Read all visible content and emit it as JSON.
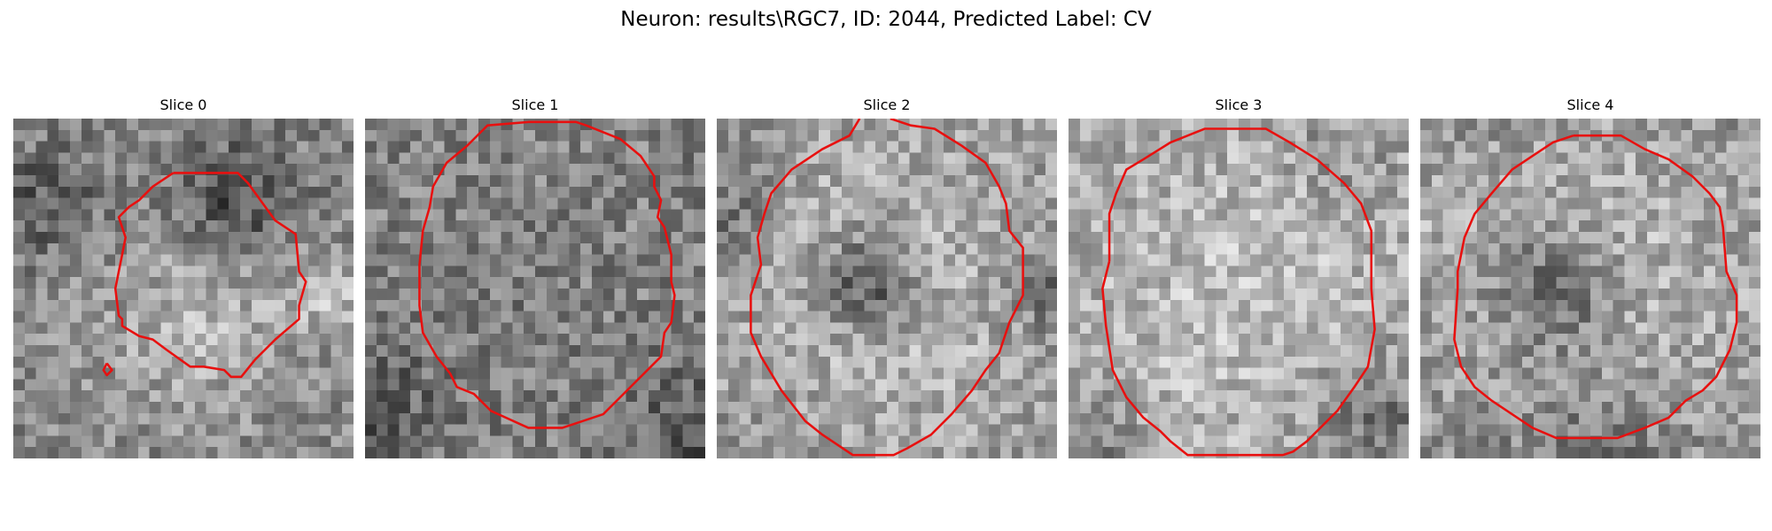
{
  "figure": {
    "title": "Neuron: results\\RGC7, ID: 2044, Predicted Label: CV"
  },
  "slices": [
    {
      "label": "Slice 0",
      "seed": 11,
      "base": 135,
      "features": [
        [
          0.65,
          0.25,
          0.13,
          -70
        ],
        [
          0.55,
          0.58,
          0.22,
          45
        ],
        [
          0.1,
          0.25,
          0.12,
          -45
        ],
        [
          0.92,
          0.5,
          0.08,
          55
        ]
      ],
      "contour": [
        [
          0.47,
          0.16
        ],
        [
          0.66,
          0.16
        ],
        [
          0.69,
          0.19
        ],
        [
          0.77,
          0.3
        ],
        [
          0.83,
          0.34
        ],
        [
          0.84,
          0.45
        ],
        [
          0.86,
          0.48
        ],
        [
          0.84,
          0.55
        ],
        [
          0.84,
          0.59
        ],
        [
          0.77,
          0.65
        ],
        [
          0.71,
          0.71
        ],
        [
          0.67,
          0.76
        ],
        [
          0.64,
          0.76
        ],
        [
          0.62,
          0.74
        ],
        [
          0.56,
          0.73
        ],
        [
          0.52,
          0.73
        ],
        [
          0.45,
          0.68
        ],
        [
          0.41,
          0.65
        ],
        [
          0.37,
          0.64
        ],
        [
          0.32,
          0.61
        ],
        [
          0.32,
          0.59
        ],
        [
          0.31,
          0.58
        ],
        [
          0.3,
          0.5
        ],
        [
          0.32,
          0.4
        ],
        [
          0.33,
          0.35
        ],
        [
          0.31,
          0.29
        ],
        [
          0.34,
          0.26
        ],
        [
          0.37,
          0.24
        ],
        [
          0.41,
          0.2
        ],
        [
          0.47,
          0.16
        ]
      ],
      "contour2": [
        [
          0.275,
          0.72
        ],
        [
          0.265,
          0.74
        ],
        [
          0.275,
          0.755
        ],
        [
          0.29,
          0.74
        ],
        [
          0.275,
          0.72
        ]
      ]
    },
    {
      "label": "Slice 1",
      "seed": 23,
      "base": 125,
      "features": [
        [
          0.5,
          0.5,
          0.45,
          10
        ],
        [
          0.02,
          0.85,
          0.15,
          -40
        ],
        [
          0.98,
          0.95,
          0.15,
          -45
        ],
        [
          0.5,
          0.55,
          0.2,
          -10
        ]
      ],
      "contour": [
        [
          0.3,
          0.08
        ],
        [
          0.34,
          0.04
        ],
        [
          0.36,
          0.02
        ],
        [
          0.48,
          0.01
        ],
        [
          0.62,
          0.01
        ],
        [
          0.65,
          0.02
        ],
        [
          0.75,
          0.06
        ],
        [
          0.81,
          0.11
        ],
        [
          0.85,
          0.17
        ],
        [
          0.85,
          0.2
        ],
        [
          0.87,
          0.24
        ],
        [
          0.86,
          0.29
        ],
        [
          0.88,
          0.32
        ],
        [
          0.9,
          0.4
        ],
        [
          0.9,
          0.48
        ],
        [
          0.91,
          0.52
        ],
        [
          0.9,
          0.6
        ],
        [
          0.88,
          0.63
        ],
        [
          0.87,
          0.7
        ],
        [
          0.83,
          0.74
        ],
        [
          0.78,
          0.79
        ],
        [
          0.7,
          0.87
        ],
        [
          0.58,
          0.91
        ],
        [
          0.48,
          0.91
        ],
        [
          0.37,
          0.86
        ],
        [
          0.32,
          0.81
        ],
        [
          0.27,
          0.79
        ],
        [
          0.25,
          0.75
        ],
        [
          0.21,
          0.7
        ],
        [
          0.17,
          0.63
        ],
        [
          0.16,
          0.55
        ],
        [
          0.16,
          0.43
        ],
        [
          0.17,
          0.33
        ],
        [
          0.19,
          0.26
        ],
        [
          0.2,
          0.2
        ],
        [
          0.24,
          0.13
        ],
        [
          0.3,
          0.08
        ]
      ],
      "gap": [
        [
          0.48,
          0.01
        ],
        [
          0.62,
          0.01
        ]
      ]
    },
    {
      "label": "Slice 2",
      "seed": 37,
      "base": 140,
      "features": [
        [
          0.45,
          0.48,
          0.1,
          -90
        ],
        [
          0.5,
          0.5,
          0.42,
          45
        ],
        [
          0.0,
          0.3,
          0.12,
          -50
        ],
        [
          0.98,
          0.5,
          0.1,
          -45
        ]
      ],
      "contour": [
        [
          0.42,
          0.0
        ],
        [
          0.39,
          0.05
        ],
        [
          0.31,
          0.09
        ],
        [
          0.22,
          0.15
        ],
        [
          0.16,
          0.22
        ],
        [
          0.14,
          0.28
        ],
        [
          0.12,
          0.35
        ],
        [
          0.13,
          0.43
        ],
        [
          0.1,
          0.52
        ],
        [
          0.1,
          0.63
        ],
        [
          0.13,
          0.7
        ],
        [
          0.16,
          0.75
        ],
        [
          0.19,
          0.8
        ],
        [
          0.26,
          0.89
        ],
        [
          0.31,
          0.93
        ],
        [
          0.4,
          0.99
        ],
        [
          0.52,
          0.99
        ],
        [
          0.56,
          0.97
        ],
        [
          0.63,
          0.93
        ],
        [
          0.69,
          0.87
        ],
        [
          0.75,
          0.8
        ],
        [
          0.79,
          0.74
        ],
        [
          0.83,
          0.69
        ],
        [
          0.86,
          0.6
        ],
        [
          0.9,
          0.52
        ],
        [
          0.9,
          0.38
        ],
        [
          0.86,
          0.33
        ],
        [
          0.85,
          0.25
        ],
        [
          0.83,
          0.2
        ],
        [
          0.79,
          0.13
        ],
        [
          0.72,
          0.08
        ],
        [
          0.64,
          0.03
        ],
        [
          0.57,
          0.02
        ],
        [
          0.54,
          0.01
        ],
        [
          0.51,
          0.0
        ]
      ],
      "gap": [
        [
          0.42,
          0.99
        ],
        [
          0.52,
          0.99
        ]
      ]
    },
    {
      "label": "Slice 3",
      "seed": 51,
      "base": 155,
      "features": [
        [
          0.5,
          0.55,
          0.45,
          35
        ],
        [
          0.92,
          0.9,
          0.15,
          -55
        ],
        [
          0.05,
          0.95,
          0.12,
          -45
        ],
        [
          0.8,
          0.1,
          0.1,
          -25
        ]
      ],
      "contour": [
        [
          0.12,
          0.42
        ],
        [
          0.12,
          0.28
        ],
        [
          0.14,
          0.22
        ],
        [
          0.17,
          0.15
        ],
        [
          0.22,
          0.12
        ],
        [
          0.3,
          0.07
        ],
        [
          0.4,
          0.03
        ],
        [
          0.58,
          0.03
        ],
        [
          0.65,
          0.07
        ],
        [
          0.73,
          0.12
        ],
        [
          0.81,
          0.19
        ],
        [
          0.86,
          0.25
        ],
        [
          0.89,
          0.33
        ],
        [
          0.89,
          0.5
        ],
        [
          0.9,
          0.62
        ],
        [
          0.88,
          0.73
        ],
        [
          0.84,
          0.79
        ],
        [
          0.79,
          0.86
        ],
        [
          0.75,
          0.9
        ],
        [
          0.7,
          0.95
        ],
        [
          0.66,
          0.98
        ],
        [
          0.63,
          0.99
        ],
        [
          0.35,
          0.99
        ],
        [
          0.3,
          0.95
        ],
        [
          0.27,
          0.92
        ],
        [
          0.22,
          0.88
        ],
        [
          0.17,
          0.82
        ],
        [
          0.13,
          0.74
        ],
        [
          0.11,
          0.61
        ],
        [
          0.1,
          0.5
        ],
        [
          0.12,
          0.42
        ]
      ],
      "gap": [
        [
          0.35,
          0.99
        ],
        [
          0.63,
          0.99
        ]
      ]
    },
    {
      "label": "Slice 4",
      "seed": 67,
      "base": 140,
      "features": [
        [
          0.4,
          0.5,
          0.12,
          -70
        ],
        [
          0.55,
          0.5,
          0.4,
          45
        ],
        [
          0.5,
          0.97,
          0.2,
          -40
        ],
        [
          0.0,
          0.3,
          0.1,
          20
        ]
      ],
      "contour": [
        [
          0.45,
          0.05
        ],
        [
          0.59,
          0.05
        ],
        [
          0.66,
          0.09
        ],
        [
          0.73,
          0.12
        ],
        [
          0.8,
          0.17
        ],
        [
          0.85,
          0.22
        ],
        [
          0.88,
          0.26
        ],
        [
          0.89,
          0.32
        ],
        [
          0.9,
          0.45
        ],
        [
          0.93,
          0.52
        ],
        [
          0.93,
          0.6
        ],
        [
          0.91,
          0.68
        ],
        [
          0.87,
          0.76
        ],
        [
          0.83,
          0.8
        ],
        [
          0.78,
          0.83
        ],
        [
          0.73,
          0.88
        ],
        [
          0.66,
          0.91
        ],
        [
          0.58,
          0.94
        ],
        [
          0.4,
          0.94
        ],
        [
          0.33,
          0.91
        ],
        [
          0.27,
          0.87
        ],
        [
          0.21,
          0.83
        ],
        [
          0.16,
          0.79
        ],
        [
          0.12,
          0.73
        ],
        [
          0.1,
          0.65
        ],
        [
          0.11,
          0.5
        ],
        [
          0.11,
          0.45
        ],
        [
          0.13,
          0.35
        ],
        [
          0.16,
          0.28
        ],
        [
          0.21,
          0.22
        ],
        [
          0.27,
          0.15
        ],
        [
          0.33,
          0.11
        ],
        [
          0.39,
          0.07
        ],
        [
          0.45,
          0.05
        ]
      ]
    }
  ]
}
